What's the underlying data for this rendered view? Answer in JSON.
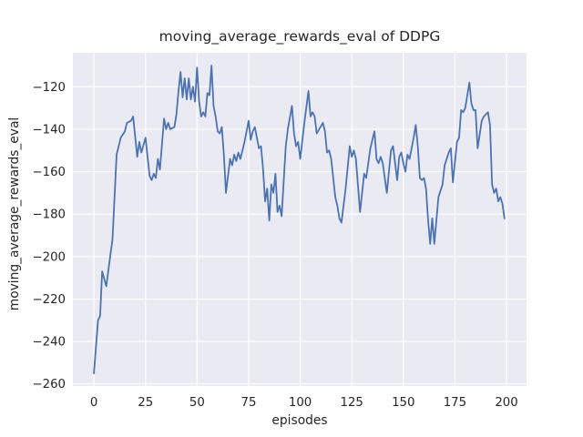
{
  "figure": {
    "background": "#ffffff"
  },
  "chart_data": {
    "type": "line",
    "title": "moving_average_rewards_eval of DDPG",
    "xlabel": "episodes",
    "ylabel": "moving_average_rewards_eval",
    "xlim": [
      -10.2,
      209.7
    ],
    "ylim": [
      -261,
      -104
    ],
    "grid": true,
    "legend": "none",
    "xticks": {
      "values": [
        0,
        25,
        50,
        75,
        100,
        125,
        150,
        175,
        200
      ],
      "labels": [
        "0",
        "25",
        "50",
        "75",
        "100",
        "125",
        "150",
        "175",
        "200"
      ]
    },
    "yticks": {
      "values": [
        -120,
        -140,
        -160,
        -180,
        -200,
        -220,
        -240,
        -260
      ],
      "labels": [
        "−120",
        "−140",
        "−160",
        "−180",
        "−200",
        "−220",
        "−240",
        "−260"
      ]
    },
    "style": {
      "axes_background": "#eaeaf2",
      "grid_color": "#ffffff",
      "text_color": "#262626",
      "line_color": "#4c72b0",
      "line_width": 1.8,
      "grid_width": 1.2
    },
    "series": [
      {
        "name": "moving_average_rewards_eval",
        "color": "#4c72b0",
        "x": [
          0,
          2,
          3,
          4,
          6,
          8,
          9,
          10,
          11,
          12,
          13,
          15,
          16,
          18,
          19,
          21,
          22,
          23,
          25,
          27,
          28,
          29,
          30,
          31,
          32,
          34,
          35,
          36,
          37,
          39,
          40,
          41,
          42,
          43,
          44,
          45,
          46,
          47,
          48,
          49,
          50,
          51,
          52,
          53,
          54,
          55,
          56,
          57,
          58,
          59,
          60,
          61,
          62,
          63,
          64,
          66,
          67,
          68,
          69,
          70,
          71,
          73,
          75,
          76,
          77,
          78,
          80,
          81,
          82,
          83,
          84,
          85,
          86,
          87,
          88,
          89,
          90,
          91,
          93,
          94,
          96,
          97,
          98,
          99,
          100,
          102,
          104,
          105,
          106,
          107,
          108,
          111,
          112,
          113,
          114,
          115,
          117,
          118,
          119,
          120,
          122,
          124,
          125,
          126,
          127,
          129,
          131,
          132,
          134,
          136,
          137,
          138,
          139,
          140,
          142,
          144,
          145,
          146,
          147,
          148,
          149,
          150,
          151,
          152,
          153,
          155,
          156,
          157,
          158,
          159,
          160,
          161,
          162,
          163,
          164,
          165,
          167,
          169,
          170,
          172,
          173,
          174,
          176,
          177,
          178,
          179,
          180,
          182,
          183,
          184,
          185,
          186,
          188,
          189,
          191,
          192,
          193,
          194,
          195,
          196,
          197,
          198,
          199
        ],
        "y": [
          -255,
          -230,
          -228,
          -207,
          -214,
          -199,
          -192,
          -172,
          -152,
          -148,
          -144,
          -141,
          -137,
          -136,
          -134,
          -153,
          -146,
          -151,
          -144,
          -162,
          -164,
          -161,
          -163,
          -154,
          -159,
          -135,
          -140,
          -137,
          -140,
          -139,
          -133,
          -122,
          -113,
          -125,
          -116,
          -126,
          -116,
          -126,
          -120,
          -127,
          -111,
          -127,
          -134,
          -132,
          -134,
          -123,
          -124,
          -110,
          -129,
          -134,
          -141,
          -142,
          -139,
          -152,
          -170,
          -154,
          -157,
          -152,
          -155,
          -151,
          -154,
          -146,
          -136,
          -145,
          -141,
          -139,
          -149,
          -148,
          -159,
          -174,
          -168,
          -183,
          -166,
          -170,
          -161,
          -179,
          -176,
          -181,
          -148,
          -140,
          -129,
          -142,
          -148,
          -146,
          -154,
          -137,
          -122,
          -134,
          -132,
          -134,
          -142,
          -137,
          -141,
          -151,
          -150,
          -154,
          -172,
          -176,
          -182,
          -184,
          -168,
          -148,
          -153,
          -150,
          -154,
          -179,
          -161,
          -163,
          -149,
          -141,
          -154,
          -156,
          -153,
          -156,
          -170,
          -150,
          -148,
          -156,
          -164,
          -153,
          -151,
          -156,
          -160,
          -152,
          -154,
          -144,
          -138,
          -148,
          -163,
          -164,
          -163,
          -168,
          -183,
          -194,
          -182,
          -194,
          -172,
          -166,
          -157,
          -151,
          -149,
          -165,
          -146,
          -144,
          -131,
          -132,
          -130,
          -118,
          -128,
          -131,
          -131,
          -149,
          -136,
          -134,
          -132,
          -138,
          -166,
          -170,
          -168,
          -174,
          -172,
          -175,
          -182
        ]
      }
    ]
  }
}
